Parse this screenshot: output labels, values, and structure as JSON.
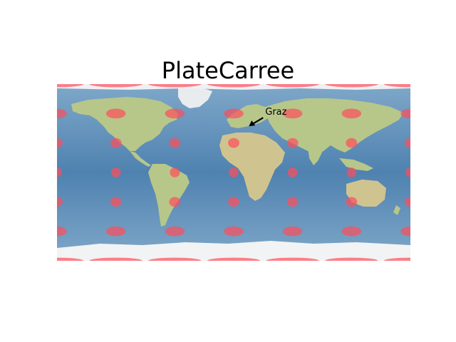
{
  "figure": {
    "title": "PlateCarree"
  },
  "map": {
    "projection": "PlateCarree",
    "lon_range": [
      -180,
      180
    ],
    "lat_range": [
      -90,
      90
    ],
    "background": "stock image (blue ocean, green/tan land, white ice)",
    "colors": {
      "ocean": "#5f8fb8",
      "ocean_deep": "#4c7fae",
      "land": "#b9c98c",
      "desert": "#d8c79a",
      "ice": "#f2f3f5",
      "circle_fill": "#ff4d5a"
    },
    "circles": {
      "radius_deg": 5,
      "opacity": 0.7,
      "lons": [
        -180,
        -120,
        -60,
        0,
        60,
        120,
        180
      ],
      "lats": [
        -90,
        -60,
        -30,
        0,
        30,
        60,
        90
      ]
    },
    "annotation": {
      "label": "Graz",
      "lon": 15.44,
      "lat": 47.07,
      "arrow": true
    }
  }
}
